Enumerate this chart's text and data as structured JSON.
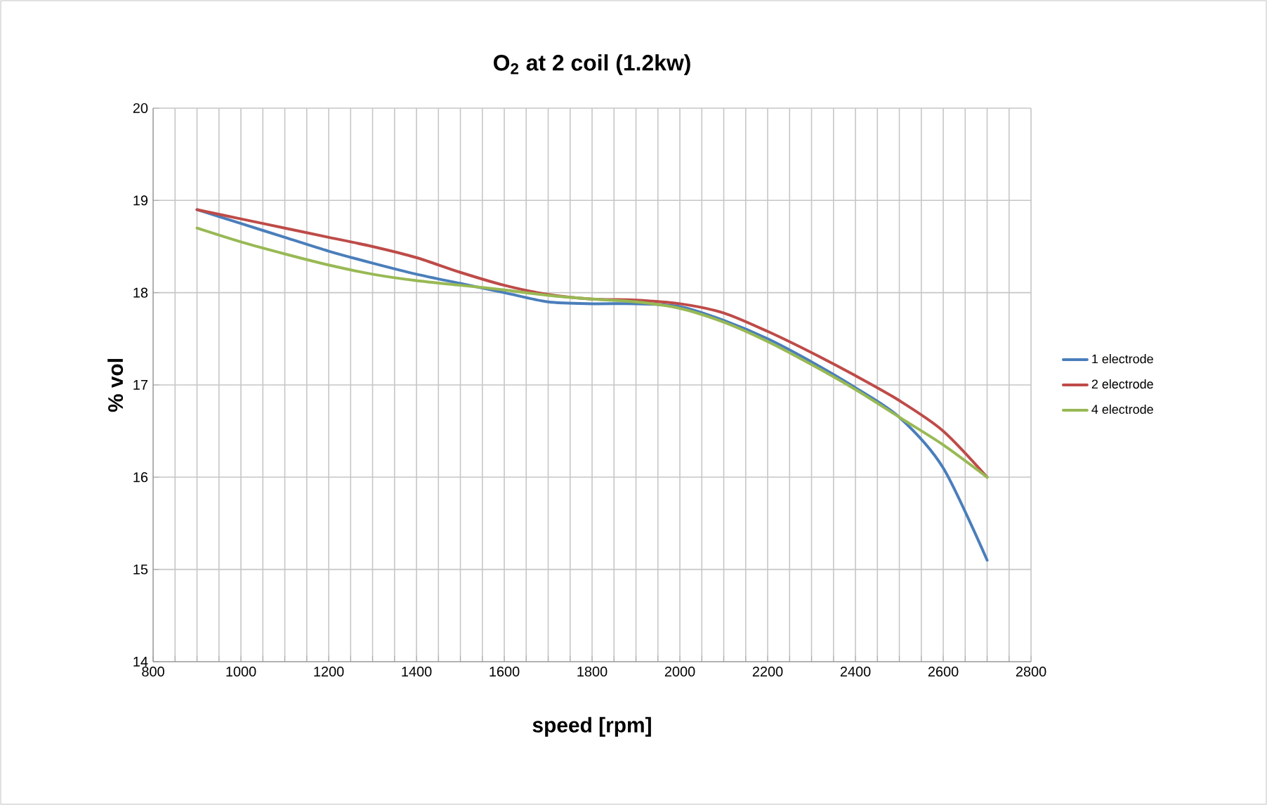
{
  "chart_data": {
    "type": "line",
    "title": "O$_{2}$ at 2 coil (1.2kw)",
    "xlabel": "speed [rpm]",
    "ylabel": "% vol",
    "x": [
      900,
      1000,
      1100,
      1200,
      1300,
      1400,
      1500,
      1600,
      1700,
      1800,
      1900,
      2000,
      2100,
      2200,
      2300,
      2400,
      2500,
      2600,
      2700
    ],
    "series": [
      {
        "name": "1 electrode",
        "color": "#4a7ebb",
        "values": [
          18.9,
          18.75,
          18.6,
          18.45,
          18.32,
          18.2,
          18.1,
          18.0,
          17.9,
          17.88,
          17.88,
          17.85,
          17.7,
          17.5,
          17.25,
          16.97,
          16.65,
          16.1,
          15.1
        ]
      },
      {
        "name": "2 electrode",
        "color": "#be4b48",
        "values": [
          18.9,
          18.8,
          18.7,
          18.6,
          18.5,
          18.38,
          18.22,
          18.08,
          17.98,
          17.93,
          17.92,
          17.88,
          17.78,
          17.58,
          17.35,
          17.1,
          16.83,
          16.5,
          16.0
        ]
      },
      {
        "name": "4 electrode",
        "color": "#98b954",
        "values": [
          18.7,
          18.55,
          18.42,
          18.3,
          18.2,
          18.13,
          18.08,
          18.03,
          17.97,
          17.93,
          17.9,
          17.83,
          17.68,
          17.47,
          17.22,
          16.95,
          16.65,
          16.35,
          16.0
        ]
      }
    ],
    "xlim": [
      800,
      2800
    ],
    "ylim": [
      14,
      20
    ],
    "xticks": [
      800,
      {
        "value": 850,
        "label": null
      },
      {
        "value": 900,
        "label": null
      },
      {
        "value": 950,
        "label": null
      },
      1000,
      {
        "value": 1050,
        "label": null
      },
      {
        "value": 1100,
        "label": null
      },
      {
        "value": 1150,
        "label": null
      },
      1200,
      {
        "value": 1250,
        "label": null
      },
      {
        "value": 1300,
        "label": null
      },
      {
        "value": 1350,
        "label": null
      },
      1400,
      {
        "value": 1450,
        "label": null
      },
      {
        "value": 1500,
        "label": null
      },
      {
        "value": 1550,
        "label": null
      },
      1600,
      {
        "value": 1650,
        "label": null
      },
      {
        "value": 1700,
        "label": null
      },
      {
        "value": 1750,
        "label": null
      },
      1800,
      {
        "value": 1850,
        "label": null
      },
      {
        "value": 1900,
        "label": null
      },
      {
        "value": 1950,
        "label": null
      },
      2000,
      {
        "value": 2050,
        "label": null
      },
      {
        "value": 2100,
        "label": null
      },
      {
        "value": 2150,
        "label": null
      },
      2200,
      {
        "value": 2250,
        "label": null
      },
      {
        "value": 2300,
        "label": null
      },
      {
        "value": 2350,
        "label": null
      },
      2400,
      {
        "value": 2450,
        "label": null
      },
      {
        "value": 2500,
        "label": null
      },
      {
        "value": 2550,
        "label": null
      },
      2600,
      {
        "value": 2650,
        "label": null
      },
      {
        "value": 2700,
        "label": null
      },
      {
        "value": 2750,
        "label": null
      },
      2800
    ],
    "yticks": [
      14,
      15,
      16,
      17,
      18,
      19,
      20
    ],
    "grid": true,
    "legend": "right",
    "marker": "none",
    "line_style": "solid"
  }
}
